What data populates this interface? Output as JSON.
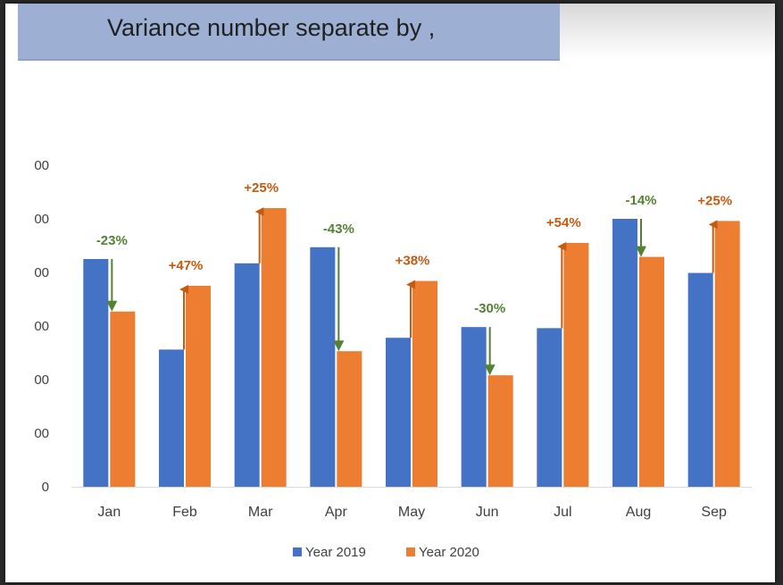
{
  "title": "Variance number separate by ,",
  "colors": {
    "series_2019": "#4472c4",
    "series_2020": "#ed7d31",
    "increase": "#c55a11",
    "decrease": "#548235"
  },
  "chart_data": {
    "type": "bar",
    "categories": [
      "Jan",
      "Feb",
      "Mar",
      "Apr",
      "May",
      "Jun",
      "Jul",
      "Aug",
      "Sep"
    ],
    "series": [
      {
        "name": "Year 2019",
        "values": [
          42500,
          25600,
          41700,
          44700,
          27800,
          29800,
          29600,
          50000,
          39900
        ]
      },
      {
        "name": "Year 2020",
        "values": [
          32700,
          37500,
          52000,
          25300,
          38400,
          20800,
          45500,
          42900,
          49600
        ]
      }
    ],
    "variance_labels": [
      "-23%",
      "+47%",
      "+25%",
      "-43%",
      "+38%",
      "-30%",
      "+54%",
      "-14%",
      "+25%"
    ],
    "y_tick_labels": [
      "0",
      "00",
      "00",
      "00",
      "00",
      "00",
      "00"
    ],
    "y_ticks": [
      0,
      10000,
      20000,
      30000,
      40000,
      50000,
      60000
    ],
    "ylim": [
      0,
      60000
    ],
    "grid": false,
    "legend": "bottom"
  }
}
